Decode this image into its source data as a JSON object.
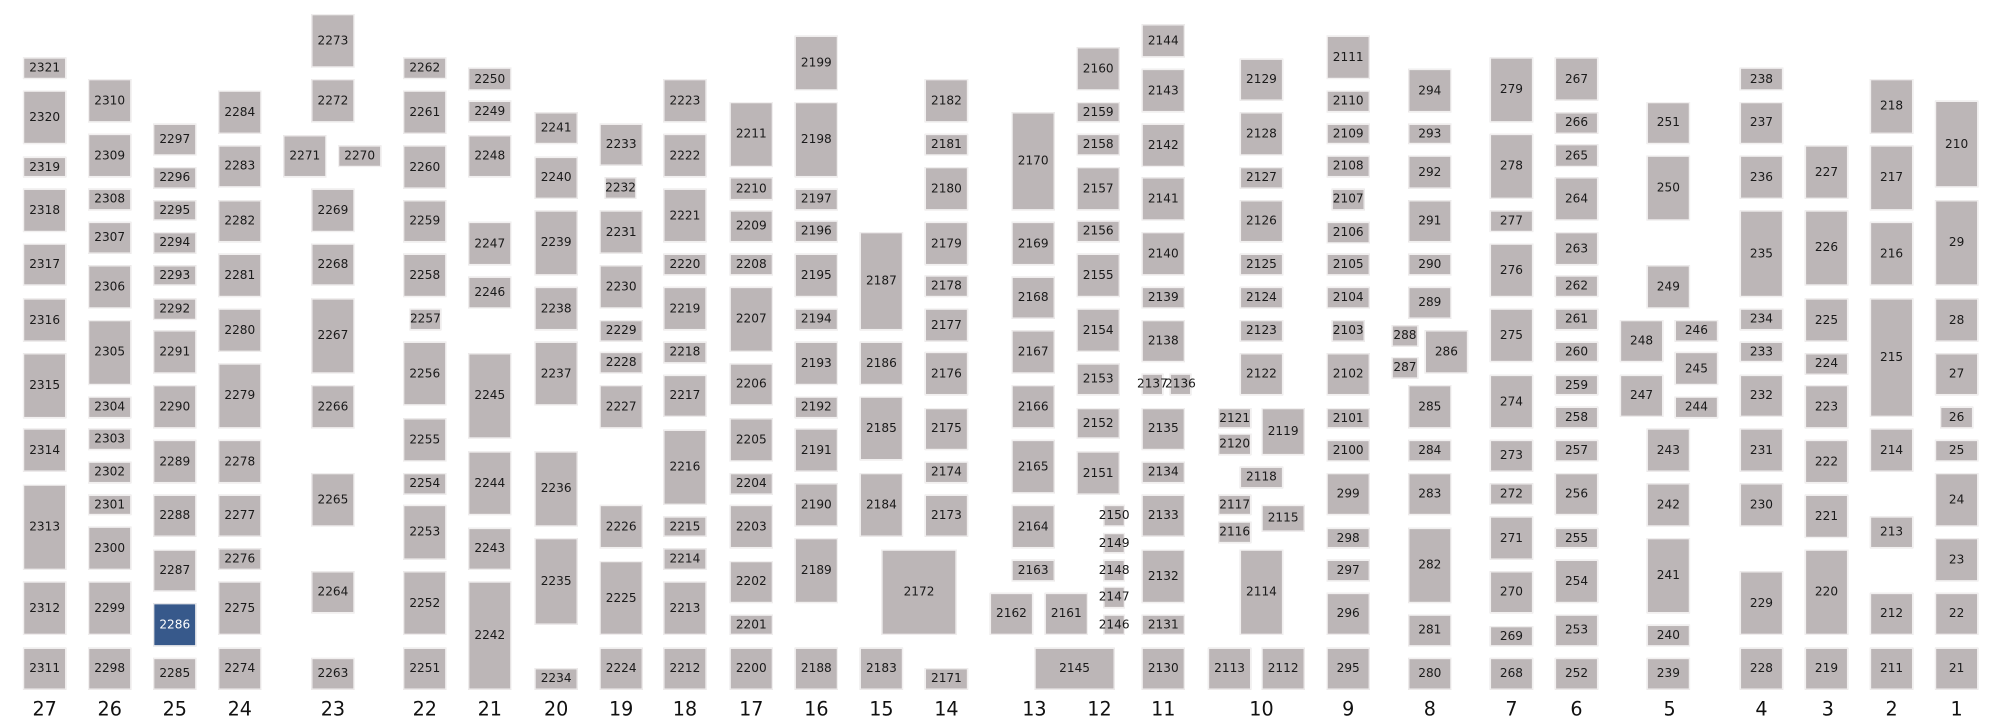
{
  "colors": {
    "slot": "#bcb6b7",
    "highlight": "#37598b",
    "highlight_text": "#ffffff",
    "text": "#1a1a1a"
  },
  "highlighted": "2286",
  "columns": [
    {
      "label": "27",
      "slots": [
        "2321",
        "2320",
        "2319",
        "2318",
        "2317",
        "2316",
        "2315",
        "2314",
        "2313",
        "2312",
        "2311"
      ]
    },
    {
      "label": "26",
      "slots": [
        "2310",
        "2309",
        "2308",
        "2307",
        "2306",
        "2305",
        "2304",
        "2303",
        "2302",
        "2301",
        "2300",
        "2299",
        "2298"
      ]
    },
    {
      "label": "25",
      "slots": [
        "2297",
        "2296",
        "2295",
        "2294",
        "2293",
        "2292",
        "2291",
        "2290",
        "2289",
        "2288",
        "2287",
        "2286",
        "2285"
      ]
    },
    {
      "label": "24",
      "slots": [
        "2284",
        "2283",
        "2282",
        "2281",
        "2280",
        "2279",
        "2278",
        "2277",
        "2276",
        "2275",
        "2274"
      ]
    },
    {
      "label": "23",
      "slots": [
        "2273",
        "2272",
        "2271",
        "2270",
        "2269",
        "2268",
        "2267",
        "2266",
        "2265",
        "2264",
        "2263"
      ]
    },
    {
      "label": "22",
      "slots": [
        "2262",
        "2261",
        "2260",
        "2259",
        "2258",
        "2257",
        "2256",
        "2255",
        "2254",
        "2253",
        "2252",
        "2251"
      ]
    },
    {
      "label": "21",
      "slots": [
        "2250",
        "2249",
        "2248",
        "2247",
        "2246",
        "2245",
        "2244",
        "2243",
        "2242"
      ]
    },
    {
      "label": "20",
      "slots": [
        "2241",
        "2240",
        "2239",
        "2238",
        "2237",
        "2236",
        "2235",
        "2234"
      ]
    },
    {
      "label": "19",
      "slots": [
        "2233",
        "2232",
        "2231",
        "2230",
        "2229",
        "2228",
        "2227",
        "2226",
        "2225",
        "2224"
      ]
    },
    {
      "label": "18",
      "slots": [
        "2223",
        "2222",
        "2221",
        "2220",
        "2219",
        "2218",
        "2217",
        "2216",
        "2215",
        "2214",
        "2213",
        "2212"
      ]
    },
    {
      "label": "17",
      "slots": [
        "2211",
        "2210",
        "2209",
        "2208",
        "2207",
        "2206",
        "2205",
        "2204",
        "2203",
        "2202",
        "2201",
        "2200"
      ]
    },
    {
      "label": "16",
      "slots": [
        "2199",
        "2198",
        "2197",
        "2196",
        "2195",
        "2194",
        "2193",
        "2192",
        "2191",
        "2190",
        "2189",
        "2188"
      ]
    },
    {
      "label": "15",
      "slots": [
        "2187",
        "2186",
        "2185",
        "2184",
        "2172",
        "2183"
      ]
    },
    {
      "label": "14",
      "slots": [
        "2182",
        "2181",
        "2180",
        "2179",
        "2178",
        "2177",
        "2176",
        "2175",
        "2174",
        "2173",
        "2171"
      ]
    },
    {
      "label": "13",
      "slots": [
        "2170",
        "2169",
        "2168",
        "2167",
        "2166",
        "2165",
        "2164",
        "2163",
        "2162",
        "2161",
        "2145"
      ]
    },
    {
      "label": "12",
      "slots": [
        "2160",
        "2159",
        "2158",
        "2157",
        "2156",
        "2155",
        "2154",
        "2153",
        "2152",
        "2151",
        "2150",
        "2149",
        "2148",
        "2147",
        "2146"
      ]
    },
    {
      "label": "11",
      "slots": [
        "2144",
        "2143",
        "2142",
        "2141",
        "2140",
        "2139",
        "2138",
        "2137",
        "2136",
        "2135",
        "2134",
        "2133",
        "2132",
        "2131",
        "2130"
      ]
    },
    {
      "label": "10",
      "slots": [
        "2129",
        "2128",
        "2127",
        "2126",
        "2125",
        "2124",
        "2123",
        "2122",
        "2121",
        "2120",
        "2119",
        "2118",
        "2117",
        "2116",
        "2115",
        "2114",
        "2113",
        "2112"
      ]
    },
    {
      "label": "9",
      "slots": [
        "2111",
        "2110",
        "2109",
        "2108",
        "2107",
        "2106",
        "2105",
        "2104",
        "2103",
        "2102",
        "2101",
        "2100",
        "299",
        "298",
        "297",
        "296",
        "295"
      ]
    },
    {
      "label": "8",
      "slots": [
        "294",
        "293",
        "292",
        "291",
        "290",
        "289",
        "288",
        "287",
        "286",
        "285",
        "284",
        "283",
        "282",
        "281",
        "280"
      ]
    },
    {
      "label": "7",
      "slots": [
        "279",
        "278",
        "277",
        "276",
        "275",
        "274",
        "273",
        "272",
        "271",
        "270",
        "269",
        "268"
      ]
    },
    {
      "label": "6",
      "slots": [
        "267",
        "266",
        "265",
        "264",
        "263",
        "262",
        "261",
        "260",
        "259",
        "258",
        "257",
        "256",
        "255",
        "254",
        "253",
        "252"
      ]
    },
    {
      "label": "5",
      "slots": [
        "251",
        "250",
        "249",
        "248",
        "247",
        "246",
        "245",
        "244",
        "243",
        "242",
        "241",
        "240",
        "239"
      ]
    },
    {
      "label": "4",
      "slots": [
        "238",
        "237",
        "236",
        "235",
        "234",
        "233",
        "232",
        "231",
        "230",
        "229",
        "228"
      ]
    },
    {
      "label": "3",
      "slots": [
        "227",
        "226",
        "225",
        "224",
        "223",
        "222",
        "221",
        "220",
        "219"
      ]
    },
    {
      "label": "2",
      "slots": [
        "218",
        "217",
        "216",
        "215",
        "214",
        "213",
        "212",
        "211"
      ]
    },
    {
      "label": "1",
      "slots": [
        "210",
        "29",
        "28",
        "27",
        "26",
        "25",
        "24",
        "23",
        "22",
        "21"
      ]
    }
  ]
}
